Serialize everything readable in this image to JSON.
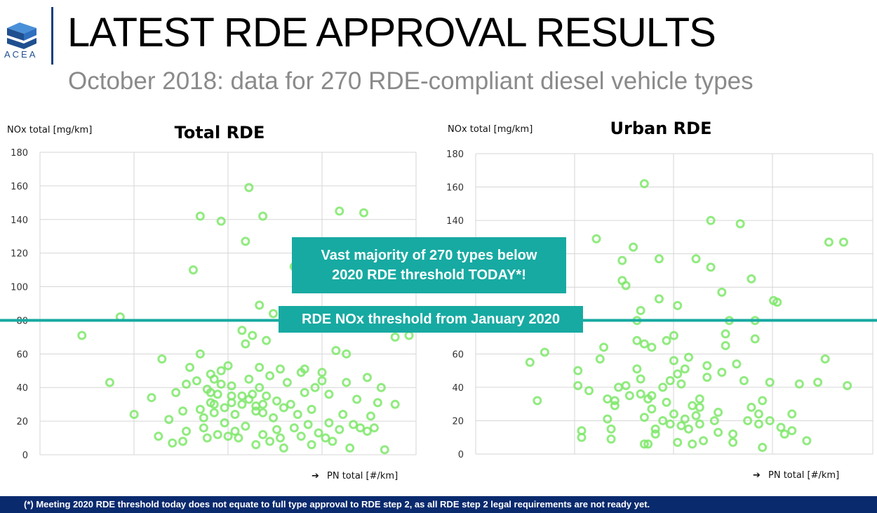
{
  "header": {
    "logo_text": "ACEA",
    "title": "LATEST RDE APPROVAL RESULTS",
    "subtitle": "October 2018: data for 270 RDE-compliant diesel vehicle types"
  },
  "callouts": {
    "majority": "Vast majority of 270 types below 2020 RDE threshold TODAY*!",
    "threshold": "RDE NOx threshold from January 2020"
  },
  "footer": "(*) Meeting 2020 RDE threshold today does not equate to full type approval to RDE step 2, as all RDE step 2 legal requirements are not ready yet.",
  "colors": {
    "accent": "#17aaa2",
    "point": "#7ee86a",
    "footer_bg": "#0a2a6e",
    "brand": "#1f4f8f"
  },
  "chart_data": [
    {
      "type": "scatter",
      "title": "Total RDE",
      "ylabel": "NOx total [mg/km]",
      "xlabel": "PN total [#/km]",
      "ylim": [
        0,
        180
      ],
      "yticks": [
        0,
        20,
        40,
        60,
        80,
        100,
        120,
        140,
        160,
        180
      ],
      "xlim": [
        0,
        1
      ],
      "threshold": 80,
      "points": [
        [
          0.06,
          71
        ],
        [
          0.17,
          82
        ],
        [
          0.14,
          43
        ],
        [
          0.21,
          24
        ],
        [
          0.26,
          34
        ],
        [
          0.28,
          11
        ],
        [
          0.29,
          57
        ],
        [
          0.31,
          21
        ],
        [
          0.32,
          7
        ],
        [
          0.33,
          37
        ],
        [
          0.35,
          26
        ],
        [
          0.35,
          8
        ],
        [
          0.36,
          14
        ],
        [
          0.36,
          42
        ],
        [
          0.37,
          52
        ],
        [
          0.38,
          110
        ],
        [
          0.39,
          44
        ],
        [
          0.4,
          142
        ],
        [
          0.4,
          60
        ],
        [
          0.4,
          27
        ],
        [
          0.41,
          22
        ],
        [
          0.41,
          16
        ],
        [
          0.42,
          39
        ],
        [
          0.42,
          10
        ],
        [
          0.43,
          48
        ],
        [
          0.43,
          31
        ],
        [
          0.44,
          25
        ],
        [
          0.44,
          45
        ],
        [
          0.45,
          12
        ],
        [
          0.45,
          36
        ],
        [
          0.46,
          139
        ],
        [
          0.46,
          50
        ],
        [
          0.47,
          19
        ],
        [
          0.47,
          28
        ],
        [
          0.48,
          53
        ],
        [
          0.48,
          11
        ],
        [
          0.49,
          35
        ],
        [
          0.49,
          41
        ],
        [
          0.5,
          24
        ],
        [
          0.5,
          14
        ],
        [
          0.51,
          10
        ],
        [
          0.52,
          74
        ],
        [
          0.52,
          30
        ],
        [
          0.53,
          17
        ],
        [
          0.53,
          66
        ],
        [
          0.53,
          127
        ],
        [
          0.54,
          159
        ],
        [
          0.54,
          45
        ],
        [
          0.55,
          71
        ],
        [
          0.55,
          36
        ],
        [
          0.56,
          6
        ],
        [
          0.56,
          26
        ],
        [
          0.57,
          52
        ],
        [
          0.57,
          89
        ],
        [
          0.57,
          40
        ],
        [
          0.58,
          142
        ],
        [
          0.58,
          12
        ],
        [
          0.58,
          30
        ],
        [
          0.59,
          68
        ],
        [
          0.59,
          35
        ],
        [
          0.6,
          8
        ],
        [
          0.6,
          47
        ],
        [
          0.61,
          84
        ],
        [
          0.61,
          22
        ],
        [
          0.62,
          15
        ],
        [
          0.62,
          32
        ],
        [
          0.63,
          10
        ],
        [
          0.63,
          51
        ],
        [
          0.64,
          28
        ],
        [
          0.64,
          4
        ],
        [
          0.65,
          43
        ],
        [
          0.66,
          30
        ],
        [
          0.67,
          112
        ],
        [
          0.67,
          16
        ],
        [
          0.68,
          85
        ],
        [
          0.68,
          24
        ],
        [
          0.69,
          49
        ],
        [
          0.69,
          11
        ],
        [
          0.7,
          37
        ],
        [
          0.7,
          51
        ],
        [
          0.71,
          18
        ],
        [
          0.72,
          27
        ],
        [
          0.72,
          6
        ],
        [
          0.73,
          40
        ],
        [
          0.74,
          13
        ],
        [
          0.75,
          44
        ],
        [
          0.75,
          49
        ],
        [
          0.76,
          10
        ],
        [
          0.77,
          19
        ],
        [
          0.77,
          36
        ],
        [
          0.78,
          8
        ],
        [
          0.79,
          62
        ],
        [
          0.8,
          145
        ],
        [
          0.8,
          15
        ],
        [
          0.81,
          24
        ],
        [
          0.82,
          60
        ],
        [
          0.82,
          43
        ],
        [
          0.83,
          4
        ],
        [
          0.84,
          18
        ],
        [
          0.85,
          33
        ],
        [
          0.86,
          16
        ],
        [
          0.87,
          144
        ],
        [
          0.88,
          46
        ],
        [
          0.88,
          14
        ],
        [
          0.89,
          23
        ],
        [
          0.9,
          16
        ],
        [
          0.91,
          31
        ],
        [
          0.92,
          40
        ],
        [
          0.93,
          3
        ],
        [
          0.96,
          70
        ],
        [
          0.96,
          30
        ],
        [
          1.0,
          71
        ],
        [
          0.43,
          37
        ],
        [
          0.46,
          42
        ],
        [
          0.49,
          31
        ],
        [
          0.52,
          35
        ],
        [
          0.54,
          33
        ],
        [
          0.56,
          29
        ],
        [
          0.58,
          25
        ],
        [
          0.44,
          30
        ]
      ]
    },
    {
      "type": "scatter",
      "title": "Urban RDE",
      "ylabel": "NOx total [mg/km]",
      "xlabel": "PN total [#/km]",
      "ylim": [
        0,
        180
      ],
      "yticks": [
        0,
        20,
        40,
        60,
        80,
        100,
        120,
        140,
        160,
        180
      ],
      "xlim": [
        0,
        1
      ],
      "threshold": 80,
      "points": [
        [
          0.09,
          55
        ],
        [
          0.11,
          32
        ],
        [
          0.13,
          61
        ],
        [
          0.22,
          50
        ],
        [
          0.22,
          41
        ],
        [
          0.23,
          14
        ],
        [
          0.23,
          10
        ],
        [
          0.25,
          38
        ],
        [
          0.27,
          129
        ],
        [
          0.28,
          57
        ],
        [
          0.29,
          64
        ],
        [
          0.3,
          33
        ],
        [
          0.3,
          21
        ],
        [
          0.31,
          15
        ],
        [
          0.31,
          9
        ],
        [
          0.32,
          29
        ],
        [
          0.32,
          32
        ],
        [
          0.33,
          40
        ],
        [
          0.34,
          104
        ],
        [
          0.34,
          116
        ],
        [
          0.35,
          101
        ],
        [
          0.35,
          41
        ],
        [
          0.37,
          124
        ],
        [
          0.38,
          80
        ],
        [
          0.38,
          68
        ],
        [
          0.38,
          51
        ],
        [
          0.39,
          86
        ],
        [
          0.39,
          45
        ],
        [
          0.39,
          36
        ],
        [
          0.4,
          162
        ],
        [
          0.4,
          66
        ],
        [
          0.4,
          22
        ],
        [
          0.4,
          6
        ],
        [
          0.41,
          6
        ],
        [
          0.41,
          33
        ],
        [
          0.42,
          27
        ],
        [
          0.42,
          64
        ],
        [
          0.43,
          15
        ],
        [
          0.43,
          12
        ],
        [
          0.44,
          117
        ],
        [
          0.44,
          93
        ],
        [
          0.45,
          40
        ],
        [
          0.45,
          20
        ],
        [
          0.46,
          68
        ],
        [
          0.46,
          31
        ],
        [
          0.47,
          44
        ],
        [
          0.47,
          18
        ],
        [
          0.48,
          71
        ],
        [
          0.48,
          56
        ],
        [
          0.49,
          89
        ],
        [
          0.49,
          48
        ],
        [
          0.49,
          7
        ],
        [
          0.5,
          42
        ],
        [
          0.5,
          17
        ],
        [
          0.51,
          21
        ],
        [
          0.51,
          51
        ],
        [
          0.52,
          15
        ],
        [
          0.52,
          58
        ],
        [
          0.53,
          29
        ],
        [
          0.53,
          6
        ],
        [
          0.54,
          117
        ],
        [
          0.54,
          23
        ],
        [
          0.55,
          18
        ],
        [
          0.55,
          28
        ],
        [
          0.56,
          8
        ],
        [
          0.57,
          53
        ],
        [
          0.57,
          46
        ],
        [
          0.58,
          140
        ],
        [
          0.58,
          112
        ],
        [
          0.59,
          20
        ],
        [
          0.6,
          13
        ],
        [
          0.61,
          97
        ],
        [
          0.61,
          49
        ],
        [
          0.62,
          72
        ],
        [
          0.62,
          65
        ],
        [
          0.63,
          80
        ],
        [
          0.64,
          12
        ],
        [
          0.64,
          7
        ],
        [
          0.65,
          54
        ],
        [
          0.66,
          138
        ],
        [
          0.67,
          44
        ],
        [
          0.68,
          20
        ],
        [
          0.69,
          105
        ],
        [
          0.69,
          28
        ],
        [
          0.7,
          80
        ],
        [
          0.7,
          69
        ],
        [
          0.71,
          18
        ],
        [
          0.71,
          24
        ],
        [
          0.72,
          32
        ],
        [
          0.72,
          4
        ],
        [
          0.74,
          20
        ],
        [
          0.74,
          43
        ],
        [
          0.75,
          92
        ],
        [
          0.76,
          91
        ],
        [
          0.77,
          16
        ],
        [
          0.78,
          12
        ],
        [
          0.8,
          24
        ],
        [
          0.8,
          14
        ],
        [
          0.82,
          42
        ],
        [
          0.84,
          8
        ],
        [
          0.87,
          43
        ],
        [
          0.89,
          57
        ],
        [
          0.9,
          127
        ],
        [
          0.94,
          127
        ],
        [
          0.95,
          41
        ],
        [
          0.36,
          35
        ],
        [
          0.42,
          35
        ],
        [
          0.48,
          24
        ],
        [
          0.55,
          33
        ],
        [
          0.6,
          25
        ]
      ]
    }
  ]
}
